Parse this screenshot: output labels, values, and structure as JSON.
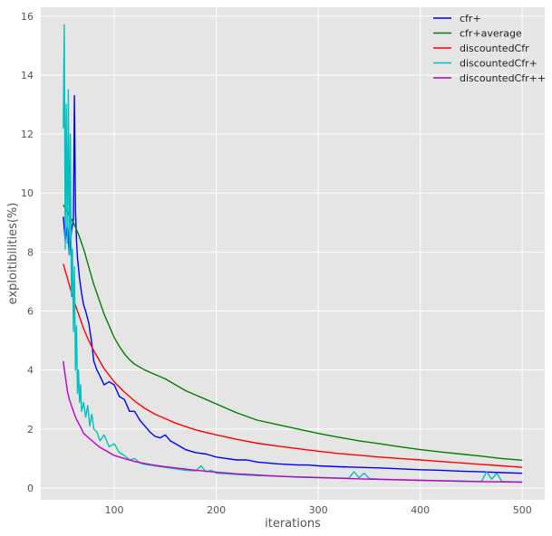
{
  "chart_data": {
    "type": "line",
    "title": "",
    "xlabel": "iterations",
    "ylabel": "exploitibilities(%)",
    "xlim": [
      28,
      522
    ],
    "ylim": [
      -0.4,
      16.3
    ],
    "xticks": [
      100,
      200,
      300,
      400,
      500
    ],
    "yticks": [
      0,
      2,
      4,
      6,
      8,
      10,
      12,
      14,
      16
    ],
    "grid": true,
    "legend_position": "top-right",
    "series": [
      {
        "name": "cfr+",
        "color": "#0000ff",
        "x": [
          50,
          52,
          54,
          56,
          58,
          60,
          61,
          62,
          63,
          64,
          66,
          68,
          70,
          72,
          75,
          78,
          80,
          83,
          86,
          90,
          95,
          100,
          105,
          110,
          115,
          120,
          125,
          130,
          135,
          140,
          145,
          150,
          155,
          160,
          165,
          170,
          175,
          180,
          190,
          200,
          210,
          220,
          230,
          240,
          250,
          260,
          270,
          280,
          290,
          300,
          320,
          340,
          360,
          380,
          400,
          420,
          440,
          460,
          480,
          500
        ],
        "y": [
          9.2,
          8.4,
          8.9,
          7.9,
          8.7,
          9.1,
          13.3,
          9.4,
          8.4,
          7.8,
          7.1,
          6.6,
          6.2,
          6.0,
          5.6,
          4.9,
          4.3,
          4.0,
          3.8,
          3.5,
          3.6,
          3.5,
          3.1,
          3.0,
          2.6,
          2.6,
          2.3,
          2.1,
          1.9,
          1.75,
          1.7,
          1.8,
          1.6,
          1.5,
          1.4,
          1.3,
          1.25,
          1.2,
          1.15,
          1.05,
          1.0,
          0.95,
          0.95,
          0.88,
          0.85,
          0.82,
          0.8,
          0.78,
          0.78,
          0.75,
          0.72,
          0.7,
          0.68,
          0.65,
          0.62,
          0.6,
          0.57,
          0.55,
          0.52,
          0.5
        ]
      },
      {
        "name": "cfr+average",
        "color": "#008000",
        "x": [
          50,
          55,
          60,
          65,
          70,
          75,
          80,
          85,
          90,
          95,
          100,
          105,
          110,
          115,
          120,
          130,
          140,
          150,
          160,
          170,
          180,
          190,
          200,
          220,
          240,
          260,
          280,
          300,
          320,
          340,
          360,
          380,
          400,
          420,
          440,
          460,
          480,
          500
        ],
        "y": [
          9.6,
          9.3,
          9.0,
          8.6,
          8.1,
          7.5,
          6.9,
          6.4,
          5.9,
          5.5,
          5.1,
          4.8,
          4.55,
          4.35,
          4.2,
          4.0,
          3.85,
          3.7,
          3.5,
          3.3,
          3.15,
          3.0,
          2.85,
          2.55,
          2.3,
          2.15,
          2.0,
          1.85,
          1.72,
          1.6,
          1.5,
          1.4,
          1.3,
          1.22,
          1.15,
          1.08,
          1.0,
          0.94
        ]
      },
      {
        "name": "discountedCfr",
        "color": "#ff0000",
        "x": [
          50,
          55,
          60,
          65,
          70,
          75,
          80,
          90,
          100,
          110,
          120,
          130,
          140,
          150,
          160,
          170,
          180,
          190,
          200,
          220,
          240,
          260,
          280,
          300,
          320,
          340,
          360,
          380,
          400,
          420,
          440,
          460,
          480,
          500
        ],
        "y": [
          7.6,
          7.0,
          6.4,
          5.9,
          5.4,
          5.0,
          4.65,
          4.05,
          3.6,
          3.25,
          2.95,
          2.7,
          2.5,
          2.35,
          2.2,
          2.08,
          1.97,
          1.88,
          1.8,
          1.65,
          1.52,
          1.42,
          1.33,
          1.25,
          1.17,
          1.11,
          1.05,
          1.0,
          0.95,
          0.9,
          0.85,
          0.8,
          0.75,
          0.7
        ]
      },
      {
        "name": "discountedCfr+",
        "color": "#00c0c0",
        "x": [
          50,
          51,
          52,
          53,
          54,
          55,
          56,
          57,
          58,
          59,
          60,
          61,
          62,
          63,
          64,
          65,
          66,
          67,
          68,
          70,
          72,
          74,
          76,
          78,
          80,
          83,
          86,
          90,
          95,
          100,
          105,
          110,
          115,
          120,
          125,
          130,
          140,
          150,
          160,
          170,
          180,
          185,
          190,
          195,
          200,
          210,
          220,
          240,
          260,
          280,
          300,
          320,
          330,
          335,
          340,
          345,
          350,
          360,
          380,
          400,
          420,
          440,
          460,
          465,
          470,
          475,
          480,
          500
        ],
        "y": [
          12.2,
          15.7,
          8.1,
          13.0,
          8.3,
          13.5,
          7.9,
          12.0,
          6.5,
          8.1,
          5.3,
          7.5,
          4.0,
          5.5,
          3.2,
          4.0,
          2.9,
          3.5,
          2.6,
          2.9,
          2.4,
          2.8,
          2.1,
          2.5,
          2.0,
          1.9,
          1.6,
          1.8,
          1.4,
          1.5,
          1.2,
          1.1,
          0.95,
          1.0,
          0.85,
          0.8,
          0.75,
          0.7,
          0.65,
          0.6,
          0.58,
          0.75,
          0.55,
          0.6,
          0.5,
          0.48,
          0.46,
          0.42,
          0.4,
          0.38,
          0.36,
          0.34,
          0.33,
          0.55,
          0.35,
          0.5,
          0.32,
          0.3,
          0.28,
          0.26,
          0.25,
          0.24,
          0.22,
          0.55,
          0.3,
          0.5,
          0.22,
          0.2
        ]
      },
      {
        "name": "discountedCfr++",
        "color": "#c000c0",
        "x": [
          50,
          52,
          54,
          56,
          58,
          60,
          62,
          65,
          68,
          70,
          75,
          80,
          85,
          90,
          95,
          100,
          110,
          120,
          130,
          140,
          150,
          160,
          180,
          200,
          220,
          240,
          260,
          280,
          300,
          350,
          400,
          450,
          500
        ],
        "y": [
          4.3,
          3.8,
          3.3,
          3.0,
          2.8,
          2.6,
          2.4,
          2.2,
          2.0,
          1.85,
          1.7,
          1.55,
          1.4,
          1.3,
          1.2,
          1.1,
          1.0,
          0.9,
          0.83,
          0.77,
          0.72,
          0.68,
          0.6,
          0.54,
          0.48,
          0.44,
          0.4,
          0.37,
          0.35,
          0.3,
          0.26,
          0.22,
          0.2
        ]
      }
    ]
  }
}
